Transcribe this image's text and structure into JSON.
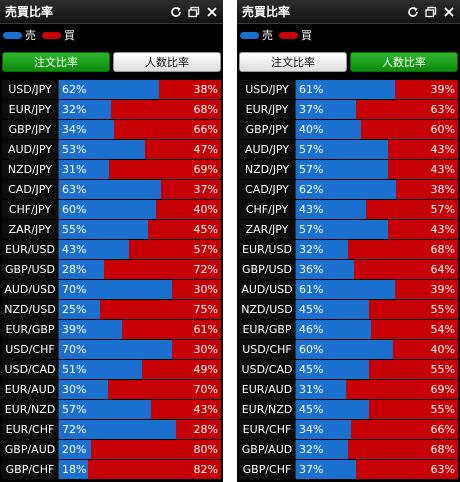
{
  "title": "売買比率",
  "legend": {
    "sell_label": "売",
    "buy_label": "買",
    "sell_color": "#1a6fcf",
    "buy_color": "#c60005"
  },
  "tabs": {
    "order": "注文比率",
    "people": "人数比率"
  },
  "icons": [
    "refresh-icon",
    "minimize-icon",
    "close-icon"
  ],
  "left_panel": {
    "active_tab": "order",
    "rows": [
      {
        "pair": "USD/JPY",
        "sell_pct": "62%",
        "buy_pct": "38%",
        "sell": 62
      },
      {
        "pair": "EUR/JPY",
        "sell_pct": "32%",
        "buy_pct": "68%",
        "sell": 32
      },
      {
        "pair": "GBP/JPY",
        "sell_pct": "34%",
        "buy_pct": "66%",
        "sell": 34
      },
      {
        "pair": "AUD/JPY",
        "sell_pct": "53%",
        "buy_pct": "47%",
        "sell": 53
      },
      {
        "pair": "NZD/JPY",
        "sell_pct": "31%",
        "buy_pct": "69%",
        "sell": 31
      },
      {
        "pair": "CAD/JPY",
        "sell_pct": "63%",
        "buy_pct": "37%",
        "sell": 63
      },
      {
        "pair": "CHF/JPY",
        "sell_pct": "60%",
        "buy_pct": "40%",
        "sell": 60
      },
      {
        "pair": "ZAR/JPY",
        "sell_pct": "55%",
        "buy_pct": "45%",
        "sell": 55
      },
      {
        "pair": "EUR/USD",
        "sell_pct": "43%",
        "buy_pct": "57%",
        "sell": 43
      },
      {
        "pair": "GBP/USD",
        "sell_pct": "28%",
        "buy_pct": "72%",
        "sell": 28
      },
      {
        "pair": "AUD/USD",
        "sell_pct": "70%",
        "buy_pct": "30%",
        "sell": 70
      },
      {
        "pair": "NZD/USD",
        "sell_pct": "25%",
        "buy_pct": "75%",
        "sell": 25
      },
      {
        "pair": "EUR/GBP",
        "sell_pct": "39%",
        "buy_pct": "61%",
        "sell": 39
      },
      {
        "pair": "USD/CHF",
        "sell_pct": "70%",
        "buy_pct": "30%",
        "sell": 70
      },
      {
        "pair": "USD/CAD",
        "sell_pct": "51%",
        "buy_pct": "49%",
        "sell": 51
      },
      {
        "pair": "EUR/AUD",
        "sell_pct": "30%",
        "buy_pct": "70%",
        "sell": 30
      },
      {
        "pair": "EUR/NZD",
        "sell_pct": "57%",
        "buy_pct": "43%",
        "sell": 57
      },
      {
        "pair": "EUR/CHF",
        "sell_pct": "72%",
        "buy_pct": "28%",
        "sell": 72
      },
      {
        "pair": "GBP/AUD",
        "sell_pct": "20%",
        "buy_pct": "80%",
        "sell": 20
      },
      {
        "pair": "GBP/CHF",
        "sell_pct": "18%",
        "buy_pct": "82%",
        "sell": 18
      }
    ]
  },
  "right_panel": {
    "active_tab": "people",
    "rows": [
      {
        "pair": "USD/JPY",
        "sell_pct": "61%",
        "buy_pct": "39%",
        "sell": 61
      },
      {
        "pair": "EUR/JPY",
        "sell_pct": "37%",
        "buy_pct": "63%",
        "sell": 37
      },
      {
        "pair": "GBP/JPY",
        "sell_pct": "40%",
        "buy_pct": "60%",
        "sell": 40
      },
      {
        "pair": "AUD/JPY",
        "sell_pct": "57%",
        "buy_pct": "43%",
        "sell": 57
      },
      {
        "pair": "NZD/JPY",
        "sell_pct": "57%",
        "buy_pct": "43%",
        "sell": 57
      },
      {
        "pair": "CAD/JPY",
        "sell_pct": "62%",
        "buy_pct": "38%",
        "sell": 62
      },
      {
        "pair": "CHF/JPY",
        "sell_pct": "43%",
        "buy_pct": "57%",
        "sell": 43
      },
      {
        "pair": "ZAR/JPY",
        "sell_pct": "57%",
        "buy_pct": "43%",
        "sell": 57
      },
      {
        "pair": "EUR/USD",
        "sell_pct": "32%",
        "buy_pct": "68%",
        "sell": 32
      },
      {
        "pair": "GBP/USD",
        "sell_pct": "36%",
        "buy_pct": "64%",
        "sell": 36
      },
      {
        "pair": "AUD/USD",
        "sell_pct": "61%",
        "buy_pct": "39%",
        "sell": 61
      },
      {
        "pair": "NZD/USD",
        "sell_pct": "45%",
        "buy_pct": "55%",
        "sell": 45
      },
      {
        "pair": "EUR/GBP",
        "sell_pct": "46%",
        "buy_pct": "54%",
        "sell": 46
      },
      {
        "pair": "USD/CHF",
        "sell_pct": "60%",
        "buy_pct": "40%",
        "sell": 60
      },
      {
        "pair": "USD/CAD",
        "sell_pct": "45%",
        "buy_pct": "55%",
        "sell": 45
      },
      {
        "pair": "EUR/AUD",
        "sell_pct": "31%",
        "buy_pct": "69%",
        "sell": 31
      },
      {
        "pair": "EUR/NZD",
        "sell_pct": "45%",
        "buy_pct": "55%",
        "sell": 45
      },
      {
        "pair": "EUR/CHF",
        "sell_pct": "34%",
        "buy_pct": "66%",
        "sell": 34
      },
      {
        "pair": "GBP/AUD",
        "sell_pct": "32%",
        "buy_pct": "68%",
        "sell": 32
      },
      {
        "pair": "GBP/CHF",
        "sell_pct": "37%",
        "buy_pct": "63%",
        "sell": 37
      }
    ]
  }
}
